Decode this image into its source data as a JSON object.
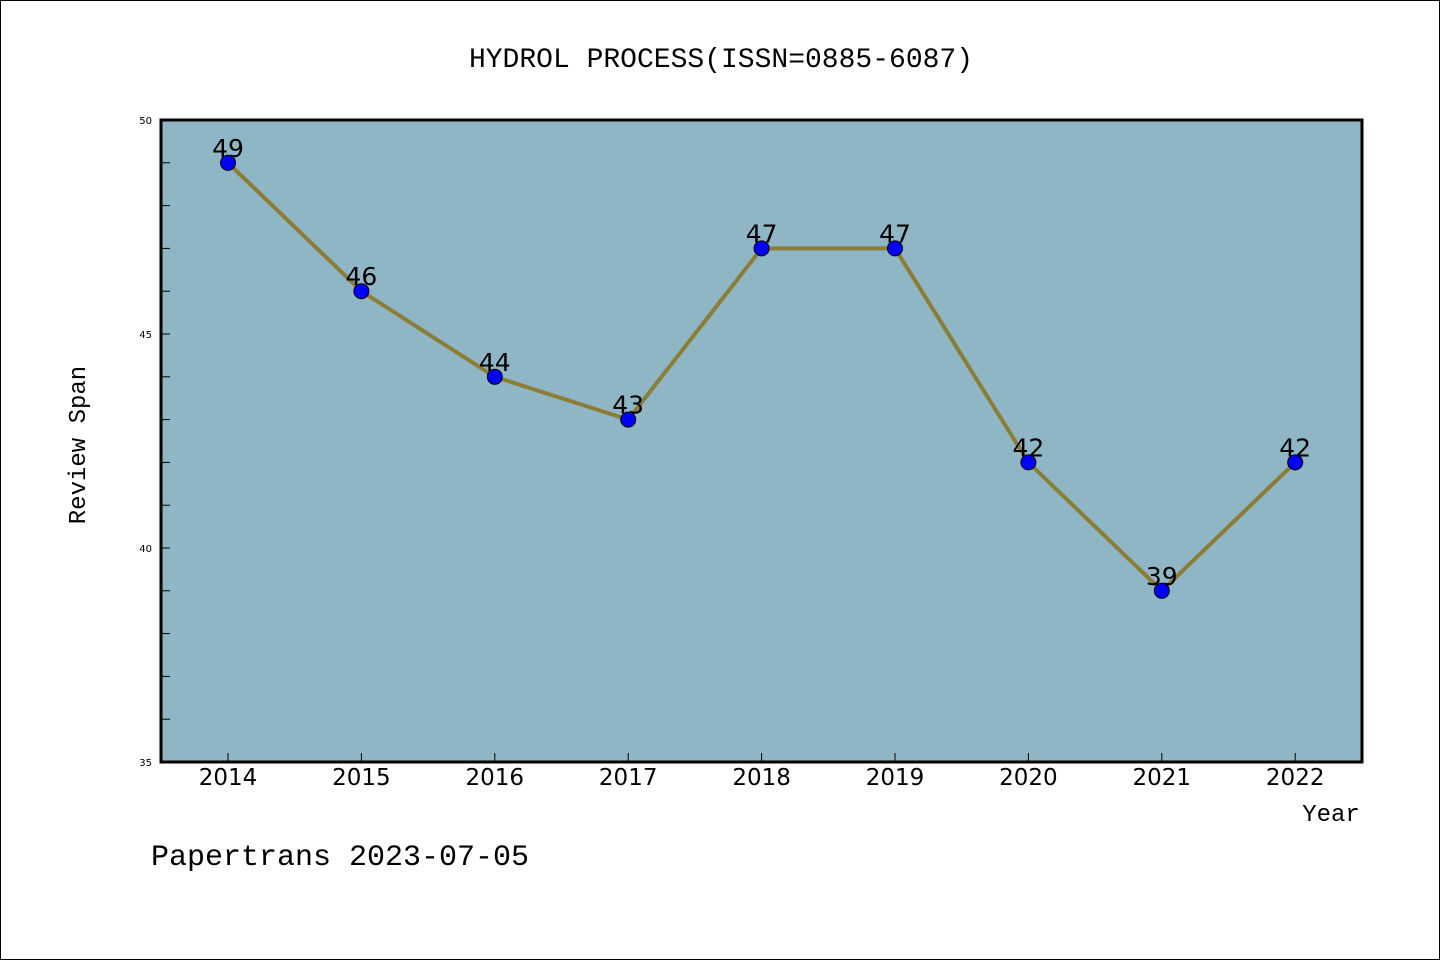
{
  "chart_data": {
    "type": "line",
    "title": "HYDROL PROCESS(ISSN=0885-6087)",
    "xlabel": "Year",
    "ylabel": "Review Span",
    "categories": [
      "2014",
      "2015",
      "2016",
      "2017",
      "2018",
      "2019",
      "2020",
      "2021",
      "2022"
    ],
    "series": [
      {
        "name": "Review Span",
        "values": [
          49,
          46,
          44,
          43,
          47,
          47,
          42,
          39,
          42
        ]
      }
    ],
    "ylim": [
      35,
      50
    ],
    "yticks": [
      "35",
      "40",
      "45",
      "50"
    ],
    "grid": false,
    "footer": "Papertrans 2023-07-05",
    "colors": {
      "background": "#8fb6c5",
      "line": "#8b7d35",
      "marker": "#0000ff"
    }
  }
}
